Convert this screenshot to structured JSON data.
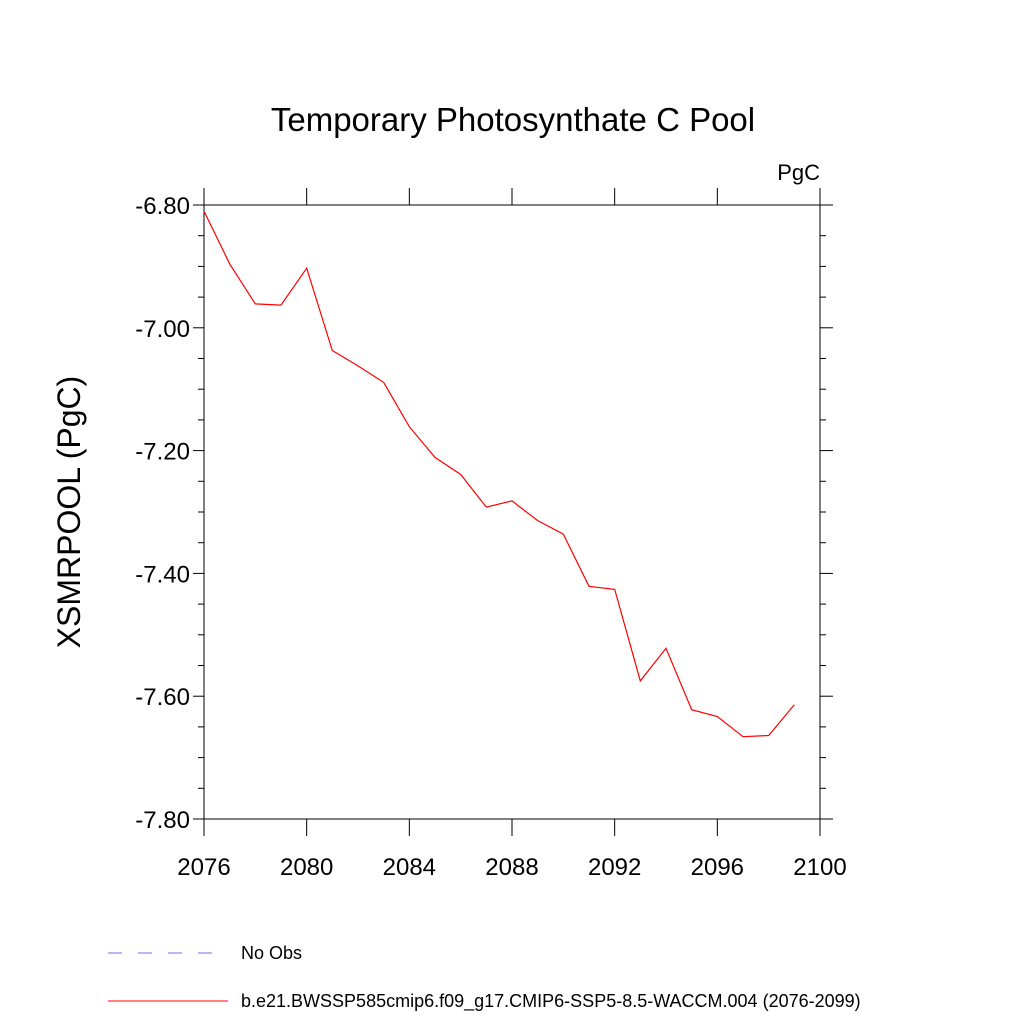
{
  "chart_data": {
    "type": "line",
    "title": "Temporary Photosynthate C Pool",
    "units": "PgC",
    "xlabel": "",
    "ylabel": "XSMRPOOL  (PgC)",
    "xlim": [
      2076,
      2100
    ],
    "ylim": [
      -7.8,
      -6.8
    ],
    "x_ticks": [
      2076,
      2080,
      2084,
      2088,
      2092,
      2096,
      2100
    ],
    "x_tick_labels": [
      "2076",
      "2080",
      "2084",
      "2088",
      "2092",
      "2096",
      "2100"
    ],
    "y_ticks": [
      -6.8,
      -7.0,
      -7.2,
      -7.4,
      -7.6,
      -7.8
    ],
    "y_tick_labels": [
      "-6.80",
      "-7.00",
      "-7.20",
      "-7.40",
      "-7.60",
      "-7.80"
    ],
    "grid": false,
    "series": [
      {
        "name": "b.e21.BWSSP585cmip6.f09_g17.CMIP6-SSP5-8.5-WACCM.004 (2076-2099)",
        "color": "#ff0000",
        "dash": "solid",
        "x": [
          2076,
          2077,
          2078,
          2079,
          2080,
          2081,
          2082,
          2083,
          2084,
          2085,
          2086,
          2087,
          2088,
          2089,
          2090,
          2091,
          2092,
          2093,
          2094,
          2095,
          2096,
          2097,
          2098,
          2099
        ],
        "y": [
          -6.81,
          -6.896,
          -6.961,
          -6.963,
          -6.903,
          -7.037,
          -7.062,
          -7.089,
          -7.161,
          -7.211,
          -7.239,
          -7.292,
          -7.282,
          -7.314,
          -7.336,
          -7.421,
          -7.426,
          -7.575,
          -7.522,
          -7.622,
          -7.633,
          -7.666,
          -7.664,
          -7.614
        ]
      }
    ],
    "legend": [
      {
        "label": "No Obs",
        "color": "#7b68ee",
        "dash": "dashed"
      },
      {
        "label": "b.e21.BWSSP585cmip6.f09_g17.CMIP6-SSP5-8.5-WACCM.004 (2076-2099)",
        "color": "#ff0000",
        "dash": "solid"
      }
    ],
    "legend_position": "bottom-left"
  }
}
